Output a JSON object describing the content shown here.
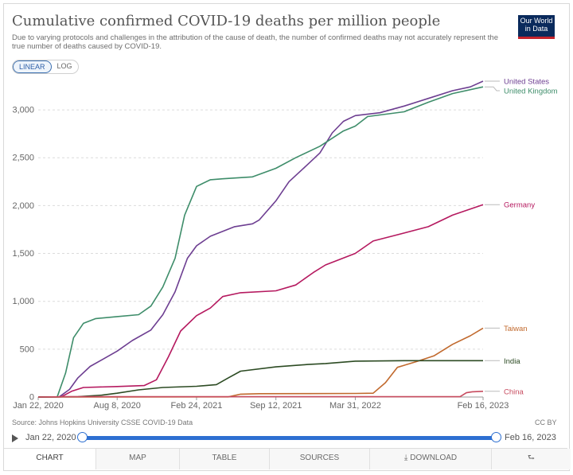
{
  "header": {
    "title": "Cumulative confirmed COVID-19 deaths per million people",
    "subtitle": "Due to varying protocols and challenges in the attribution of the cause of death, the number of confirmed deaths may not accurately represent the true number of deaths caused by COVID-19.",
    "logo_line1": "Our World",
    "logo_line2": "in Data"
  },
  "scale_toggle": {
    "linear": "LINEAR",
    "log": "LOG",
    "active": "linear"
  },
  "footer": {
    "source": "Source: Johns Hopkins University CSSE COVID-19 Data",
    "license": "CC BY"
  },
  "timeline": {
    "start": "Jan 22, 2020",
    "end": "Feb 16, 2023"
  },
  "tabs": [
    {
      "label": "CHART",
      "icon": ""
    },
    {
      "label": "MAP",
      "icon": ""
    },
    {
      "label": "TABLE",
      "icon": ""
    },
    {
      "label": "SOURCES",
      "icon": ""
    },
    {
      "label": "DOWNLOAD",
      "icon": "download-icon"
    },
    {
      "label": "",
      "icon": "share-icon"
    }
  ],
  "chart_data": {
    "type": "line",
    "title": "Cumulative confirmed COVID-19 deaths per million people",
    "x_domain": [
      "2020-01-22",
      "2023-02-16"
    ],
    "x_ticks": [
      {
        "date": "2020-01-22",
        "label": "Jan 22, 2020"
      },
      {
        "date": "2020-08-08",
        "label": "Aug 8, 2020"
      },
      {
        "date": "2021-02-24",
        "label": "Feb 24, 2021"
      },
      {
        "date": "2021-09-12",
        "label": "Sep 12, 2021"
      },
      {
        "date": "2022-03-31",
        "label": "Mar 31, 2022"
      },
      {
        "date": "2023-02-16",
        "label": "Feb 16, 2023"
      }
    ],
    "ylim": [
      0,
      3300
    ],
    "y_ticks": [
      0,
      500,
      1000,
      1500,
      2000,
      2500,
      3000
    ],
    "y_tick_labels": [
      "0",
      "500",
      "1,000",
      "1,500",
      "2,000",
      "2,500",
      "3,000"
    ],
    "grid": "horizontal dashed",
    "legend": "right (labels at line ends)",
    "series": [
      {
        "name": "United States",
        "color": "#6d3e91",
        "points": [
          [
            "2020-01-22",
            0
          ],
          [
            "2020-03-15",
            2
          ],
          [
            "2020-04-10",
            80
          ],
          [
            "2020-05-01",
            200
          ],
          [
            "2020-06-01",
            320
          ],
          [
            "2020-07-01",
            390
          ],
          [
            "2020-08-08",
            480
          ],
          [
            "2020-09-15",
            590
          ],
          [
            "2020-11-01",
            700
          ],
          [
            "2020-12-01",
            860
          ],
          [
            "2021-01-01",
            1100
          ],
          [
            "2021-02-01",
            1450
          ],
          [
            "2021-02-24",
            1580
          ],
          [
            "2021-03-31",
            1680
          ],
          [
            "2021-05-31",
            1780
          ],
          [
            "2021-07-15",
            1810
          ],
          [
            "2021-08-01",
            1850
          ],
          [
            "2021-09-12",
            2050
          ],
          [
            "2021-10-15",
            2250
          ],
          [
            "2021-12-01",
            2430
          ],
          [
            "2022-01-01",
            2550
          ],
          [
            "2022-02-01",
            2760
          ],
          [
            "2022-03-01",
            2880
          ],
          [
            "2022-03-31",
            2940
          ],
          [
            "2022-06-01",
            2970
          ],
          [
            "2022-08-01",
            3040
          ],
          [
            "2022-10-01",
            3120
          ],
          [
            "2022-12-01",
            3200
          ],
          [
            "2023-01-15",
            3240
          ],
          [
            "2023-02-16",
            3300
          ]
        ]
      },
      {
        "name": "United Kingdom",
        "color": "#3e8d6a",
        "points": [
          [
            "2020-01-22",
            0
          ],
          [
            "2020-03-10",
            2
          ],
          [
            "2020-03-31",
            250
          ],
          [
            "2020-04-20",
            620
          ],
          [
            "2020-05-15",
            770
          ],
          [
            "2020-06-15",
            820
          ],
          [
            "2020-08-08",
            840
          ],
          [
            "2020-10-01",
            860
          ],
          [
            "2020-11-01",
            950
          ],
          [
            "2020-12-01",
            1150
          ],
          [
            "2021-01-01",
            1450
          ],
          [
            "2021-01-25",
            1900
          ],
          [
            "2021-02-24",
            2200
          ],
          [
            "2021-03-31",
            2270
          ],
          [
            "2021-05-01",
            2280
          ],
          [
            "2021-07-15",
            2300
          ],
          [
            "2021-09-12",
            2390
          ],
          [
            "2021-11-01",
            2500
          ],
          [
            "2022-01-01",
            2620
          ],
          [
            "2022-03-01",
            2780
          ],
          [
            "2022-03-31",
            2830
          ],
          [
            "2022-05-01",
            2930
          ],
          [
            "2022-08-01",
            2980
          ],
          [
            "2022-10-01",
            3080
          ],
          [
            "2022-12-01",
            3170
          ],
          [
            "2023-02-16",
            3240
          ]
        ]
      },
      {
        "name": "Germany",
        "color": "#b5195f",
        "points": [
          [
            "2020-01-22",
            0
          ],
          [
            "2020-03-20",
            2
          ],
          [
            "2020-04-15",
            60
          ],
          [
            "2020-05-15",
            100
          ],
          [
            "2020-08-08",
            110
          ],
          [
            "2020-10-15",
            120
          ],
          [
            "2020-11-15",
            180
          ],
          [
            "2020-12-15",
            420
          ],
          [
            "2021-01-15",
            690
          ],
          [
            "2021-02-24",
            850
          ],
          [
            "2021-03-31",
            930
          ],
          [
            "2021-05-01",
            1050
          ],
          [
            "2021-06-15",
            1090
          ],
          [
            "2021-09-12",
            1110
          ],
          [
            "2021-11-01",
            1170
          ],
          [
            "2021-12-15",
            1300
          ],
          [
            "2022-01-15",
            1380
          ],
          [
            "2022-03-31",
            1500
          ],
          [
            "2022-05-15",
            1630
          ],
          [
            "2022-07-01",
            1680
          ],
          [
            "2022-10-01",
            1780
          ],
          [
            "2022-12-01",
            1900
          ],
          [
            "2023-02-16",
            2010
          ]
        ]
      },
      {
        "name": "Taiwan",
        "color": "#c1692d",
        "points": [
          [
            "2020-01-22",
            0
          ],
          [
            "2021-05-15",
            2
          ],
          [
            "2021-06-15",
            30
          ],
          [
            "2021-08-01",
            35
          ],
          [
            "2021-12-01",
            36
          ],
          [
            "2022-04-01",
            37
          ],
          [
            "2022-05-15",
            40
          ],
          [
            "2022-06-15",
            150
          ],
          [
            "2022-07-15",
            310
          ],
          [
            "2022-09-01",
            370
          ],
          [
            "2022-10-15",
            430
          ],
          [
            "2022-12-01",
            550
          ],
          [
            "2023-01-15",
            640
          ],
          [
            "2023-02-16",
            720
          ]
        ]
      },
      {
        "name": "India",
        "color": "#2c4b23",
        "points": [
          [
            "2020-01-22",
            0
          ],
          [
            "2020-05-01",
            3
          ],
          [
            "2020-07-01",
            20
          ],
          [
            "2020-08-08",
            40
          ],
          [
            "2020-10-01",
            75
          ],
          [
            "2020-12-01",
            100
          ],
          [
            "2021-02-24",
            112
          ],
          [
            "2021-04-15",
            130
          ],
          [
            "2021-05-15",
            200
          ],
          [
            "2021-06-15",
            270
          ],
          [
            "2021-09-12",
            315
          ],
          [
            "2021-12-01",
            340
          ],
          [
            "2022-01-15",
            350
          ],
          [
            "2022-03-31",
            375
          ],
          [
            "2022-08-01",
            380
          ],
          [
            "2023-02-16",
            380
          ]
        ]
      },
      {
        "name": "China",
        "color": "#c74b5f",
        "points": [
          [
            "2020-01-22",
            0
          ],
          [
            "2020-04-01",
            3
          ],
          [
            "2022-12-20",
            3
          ],
          [
            "2023-01-05",
            45
          ],
          [
            "2023-01-20",
            55
          ],
          [
            "2023-02-16",
            60
          ]
        ]
      }
    ]
  }
}
